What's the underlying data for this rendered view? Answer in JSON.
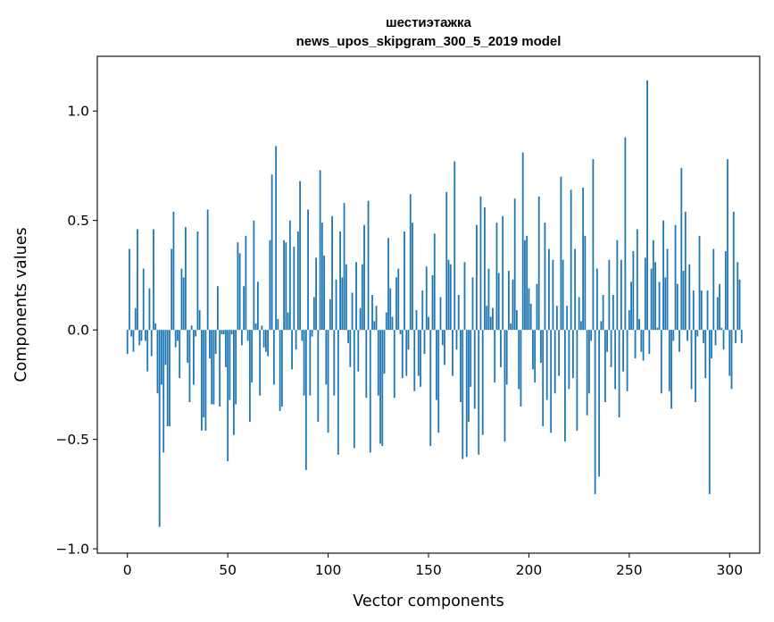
{
  "chart_data": {
    "type": "bar",
    "title": "шестиэтажка",
    "subtitle": "news_upos_skipgram_300_5_2019 model",
    "xlabel": "Vector components",
    "ylabel": "Components values",
    "xlim": [
      -15,
      315
    ],
    "ylim": [
      -1.02,
      1.25
    ],
    "xticks": [
      0,
      50,
      100,
      150,
      200,
      250,
      300
    ],
    "xtick_labels": [
      "0",
      "50",
      "100",
      "150",
      "200",
      "250",
      "300"
    ],
    "yticks": [
      -1.0,
      -0.5,
      0.0,
      0.5,
      1.0
    ],
    "ytick_labels": [
      "−1.0",
      "−0.5",
      "0.0",
      "0.5",
      "1.0"
    ],
    "bar_color": "#1f77b4",
    "grid": false,
    "values": [
      -0.11,
      0.37,
      -0.03,
      -0.1,
      0.1,
      0.46,
      -0.07,
      -0.05,
      0.28,
      -0.05,
      -0.19,
      0.19,
      -0.12,
      0.46,
      0.03,
      -0.29,
      -0.9,
      -0.25,
      -0.56,
      -0.16,
      -0.44,
      -0.44,
      0.37,
      0.54,
      -0.08,
      -0.05,
      -0.22,
      0.28,
      0.24,
      0.47,
      -0.15,
      -0.33,
      0.02,
      -0.25,
      -0.03,
      0.45,
      0.09,
      -0.46,
      -0.4,
      -0.46,
      0.55,
      -0.13,
      -0.34,
      -0.34,
      -0.11,
      0.2,
      -0.35,
      -0.02,
      -0.02,
      -0.17,
      -0.6,
      -0.32,
      -0.02,
      -0.48,
      -0.34,
      0.4,
      0.35,
      -0.07,
      0.2,
      0.43,
      -0.05,
      -0.42,
      -0.24,
      0.5,
      0.03,
      0.22,
      -0.3,
      0.02,
      -0.08,
      -0.1,
      -0.12,
      0.41,
      0.71,
      -0.25,
      0.84,
      0.05,
      -0.37,
      -0.35,
      0.41,
      0.4,
      0.08,
      0.5,
      -0.18,
      0.38,
      -0.09,
      0.45,
      0.68,
      -0.05,
      -0.3,
      -0.64,
      0.55,
      -0.3,
      -0.03,
      0.15,
      0.33,
      -0.42,
      0.73,
      0.49,
      0.34,
      -0.25,
      -0.47,
      0.14,
      0.52,
      -0.3,
      0.23,
      -0.57,
      0.45,
      0.24,
      0.58,
      0.3,
      -0.06,
      -0.17,
      0.17,
      -0.54,
      0.31,
      -0.19,
      0.1,
      0.3,
      0.48,
      -0.31,
      0.59,
      -0.56,
      0.16,
      0.04,
      0.11,
      -0.3,
      -0.52,
      -0.53,
      -0.2,
      0.08,
      0.42,
      0.19,
      0.06,
      -0.31,
      0.24,
      0.28,
      -0.02,
      -0.22,
      0.45,
      -0.21,
      -0.09,
      0.62,
      0.49,
      -0.28,
      0.09,
      -0.21,
      -0.26,
      0.18,
      -0.11,
      0.29,
      0.06,
      -0.53,
      0.25,
      0.44,
      -0.32,
      -0.47,
      0.15,
      -0.07,
      -0.16,
      0.63,
      0.32,
      0.3,
      -0.21,
      0.77,
      -0.09,
      0.16,
      -0.33,
      -0.59,
      0.31,
      -0.58,
      -0.42,
      -0.26,
      0.24,
      -0.36,
      0.48,
      -0.57,
      0.61,
      -0.48,
      0.56,
      0.11,
      0.28,
      0.06,
      0.1,
      -0.24,
      0.49,
      0.26,
      -0.17,
      0.52,
      -0.51,
      -0.25,
      0.27,
      0.03,
      0.23,
      0.6,
      0.09,
      -0.27,
      -0.35,
      0.81,
      0.41,
      0.43,
      0.19,
      0.12,
      -0.18,
      -0.24,
      0.21,
      0.61,
      -0.15,
      -0.44,
      0.49,
      -0.32,
      0.37,
      -0.47,
      0.32,
      -0.29,
      0.11,
      -0.21,
      0.7,
      0.32,
      -0.51,
      0.11,
      -0.27,
      0.64,
      -0.22,
      0.37,
      -0.46,
      0.15,
      0.04,
      0.65,
      0.43,
      -0.39,
      -0.29,
      -0.05,
      0.78,
      -0.75,
      0.28,
      -0.67,
      0.04,
      0.16,
      -0.33,
      -0.1,
      0.32,
      -0.17,
      0.16,
      -0.27,
      0.41,
      -0.4,
      0.32,
      -0.19,
      0.88,
      -0.28,
      0.09,
      0.22,
      0.36,
      -0.13,
      0.46,
      0.05,
      -0.1,
      -0.14,
      0.33,
      1.14,
      -0.11,
      0.28,
      0.41,
      0.31,
      0.01,
      0.22,
      -0.29,
      0.5,
      0.24,
      0.37,
      -0.28,
      -0.36,
      -0.05,
      0.48,
      0.21,
      -0.1,
      0.74,
      0.27,
      0.54,
      -0.05,
      0.3,
      -0.27,
      0.18,
      -0.33,
      -0.03,
      0.43,
      0.18,
      -0.06,
      -0.22,
      0.18,
      -0.75,
      -0.13,
      0.37,
      -0.07,
      0.15,
      0.21,
      0.01,
      -0.09,
      0.36,
      0.78,
      -0.21,
      -0.27,
      0.54,
      -0.06,
      0.31,
      0.23,
      -0.06
    ]
  }
}
